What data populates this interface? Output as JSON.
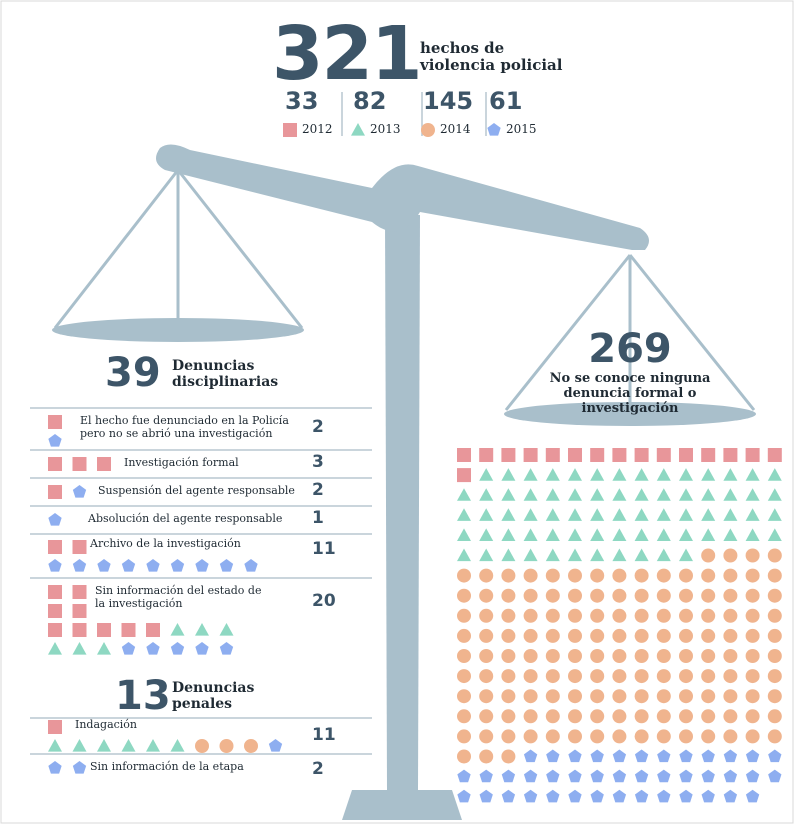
{
  "header": {
    "total": 321,
    "label": "hechos de violencia policial"
  },
  "years": [
    {
      "count": 33,
      "year": "2012",
      "color": "#e8969a"
    },
    {
      "count": 82,
      "year": "2013",
      "color": "#8ed8c2"
    },
    {
      "count": 145,
      "year": "2014",
      "color": "#f0b48e"
    },
    {
      "count": 61,
      "year": "2015",
      "color": "#8eaef0"
    }
  ],
  "disciplinary": {
    "count": 39,
    "label": "Denuncias disciplinarias",
    "rows": [
      {
        "text": "El hecho fue denunciado en la Policía pero no se abrió una investigación",
        "count": 2,
        "icons": [
          1,
          0,
          0,
          1
        ]
      },
      {
        "text": "Investigación formal",
        "count": 3,
        "icons": [
          3,
          0,
          0,
          0
        ]
      },
      {
        "text": "Suspensión del agente responsable",
        "count": 2,
        "icons": [
          1,
          0,
          0,
          1
        ]
      },
      {
        "text": "Absolución del agente responsable",
        "count": 1,
        "icons": [
          0,
          0,
          0,
          1
        ]
      },
      {
        "text": "Archivo de la investigación",
        "count": 11,
        "icons": [
          2,
          0,
          0,
          9
        ]
      },
      {
        "text": "Sin información del estado de la investigación",
        "count": 20,
        "icons": [
          9,
          6,
          0,
          5
        ]
      }
    ]
  },
  "penal": {
    "count": 13,
    "label": "Denuncias penales",
    "rows": [
      {
        "text": "Indagación",
        "count": 11,
        "icons": [
          1,
          6,
          3,
          1
        ]
      },
      {
        "text": "Sin información de la etapa",
        "count": 2,
        "icons": [
          0,
          0,
          0,
          2
        ]
      }
    ]
  },
  "unknown": {
    "count": 269,
    "label": "No se conoce ninguna denuncia formal o investigación",
    "icons": [
      16,
      70,
      142,
      41
    ]
  }
}
